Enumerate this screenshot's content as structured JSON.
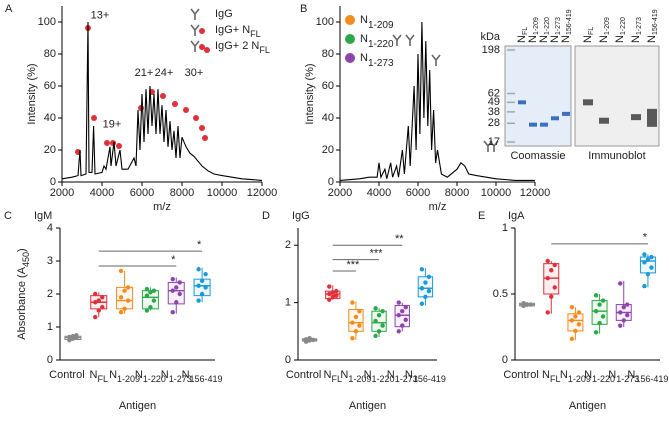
{
  "chart_data": [
    {
      "type": "line",
      "panel_label": "A",
      "xlabel": "m/z",
      "ylabel": "Intensity (%)",
      "color": "#000000",
      "x": [
        2000,
        2500,
        2800,
        2900,
        2950,
        3200,
        3300,
        3350,
        3500,
        3580,
        3650,
        4000,
        4100,
        4200,
        4400,
        4450,
        4600,
        4700,
        4900,
        5000,
        5300,
        5600,
        5700,
        5800,
        5900,
        6000,
        6100,
        6200,
        6300,
        6400,
        6500,
        6600,
        6700,
        6800,
        6900,
        7000,
        7100,
        7200,
        7300,
        7400,
        7500,
        7600,
        7700,
        7800,
        7900,
        8000,
        8200,
        8400,
        8600,
        8800,
        9000,
        9300,
        9600,
        10000,
        10500,
        11000,
        12000
      ],
      "values": [
        2,
        3,
        4,
        20,
        4,
        5,
        100,
        6,
        6,
        35,
        5,
        6,
        10,
        8,
        22,
        10,
        25,
        10,
        20,
        8,
        8,
        15,
        10,
        45,
        20,
        55,
        25,
        58,
        30,
        60,
        35,
        55,
        30,
        58,
        30,
        48,
        25,
        45,
        22,
        38,
        20,
        32,
        15,
        35,
        15,
        28,
        22,
        18,
        16,
        13,
        10,
        7,
        5,
        4,
        3,
        2,
        1
      ],
      "xlim": [
        2000,
        12000
      ],
      "xticks": [
        2000,
        4000,
        6000,
        8000,
        10000,
        12000
      ],
      "ylim": [
        0,
        110
      ],
      "yticks": [
        0,
        20,
        40,
        60,
        80,
        100
      ],
      "annotations": [
        {
          "text": "13+",
          "x": 3900,
          "y": 104
        },
        {
          "text": "19+",
          "x": 4500,
          "y": 36
        },
        {
          "text": "21+",
          "x": 6100,
          "y": 68
        },
        {
          "text": "24+",
          "x": 7100,
          "y": 68
        },
        {
          "text": "30+",
          "x": 8600,
          "y": 68
        }
      ],
      "legend": [
        {
          "text": "IgG"
        },
        {
          "text": "IgG+ N",
          "sub": "FL"
        },
        {
          "text": "IgG+ 2 N",
          "sub": "FL"
        }
      ],
      "marker_color": "#e0303a"
    },
    {
      "type": "line",
      "panel_label": "B",
      "xlabel": "m/z",
      "ylabel": "Intensity (%)",
      "color": "#000000",
      "x": [
        2000,
        3000,
        3500,
        3900,
        4000,
        4100,
        4300,
        4400,
        4600,
        4700,
        4900,
        5000,
        5200,
        5300,
        5500,
        5600,
        5800,
        5900,
        6000,
        6100,
        6200,
        6300,
        6400,
        6500,
        6600,
        6700,
        6800,
        6900,
        7000,
        7200,
        7500,
        8000,
        8200,
        8400,
        8600,
        9000,
        10000,
        11000,
        12000
      ],
      "values": [
        1,
        2,
        3,
        3,
        12,
        3,
        8,
        2,
        12,
        3,
        10,
        3,
        20,
        5,
        35,
        10,
        60,
        20,
        80,
        30,
        100,
        40,
        88,
        35,
        70,
        20,
        45,
        12,
        20,
        5,
        3,
        8,
        12,
        10,
        5,
        4,
        2,
        1,
        1
      ],
      "xlim": [
        2000,
        12000
      ],
      "xticks": [
        2000,
        4000,
        6000,
        8000,
        10000,
        12000
      ],
      "ylim": [
        0,
        110
      ],
      "yticks": [
        0,
        20,
        40,
        60,
        80,
        100
      ],
      "legend": [
        {
          "text": "N",
          "sub": "1-209",
          "color": "#f28c1e"
        },
        {
          "text": "N",
          "sub": "1-220",
          "color": "#2ca84a"
        },
        {
          "text": "N",
          "sub": "1-273",
          "color": "#8e44ad"
        }
      ],
      "inset": {
        "unit": "kDa",
        "markers": [
          198,
          62,
          49,
          38,
          28,
          17
        ],
        "lanes": [
          {
            "text": "N",
            "sub": "FL"
          },
          {
            "text": "N",
            "sub": "1-209"
          },
          {
            "text": "N",
            "sub": "1-220"
          },
          {
            "text": "N",
            "sub": "1-273"
          },
          {
            "text": "N",
            "sub": "156-419"
          }
        ],
        "blots": [
          "Coomassie",
          "Immunoblot"
        ]
      }
    },
    {
      "type": "box",
      "panel_label": "C",
      "title": "IgM",
      "xlabel": "Antigen",
      "ylabel": "Absorbance (A",
      "ylabel_sub": "450",
      "ylabel_end": ")",
      "categories": [
        "Control",
        "N",
        "N",
        "N",
        "N",
        "N"
      ],
      "category_subscripts": [
        null,
        "FL",
        "1-209",
        "1-220",
        "1-273",
        "156-419"
      ],
      "colors": [
        "#888888",
        "#e0303a",
        "#f28c1e",
        "#2ca84a",
        "#8e44ad",
        "#1b9ad6"
      ],
      "ylim": [
        0,
        4
      ],
      "yticks": [
        0,
        1,
        2,
        3,
        4
      ],
      "boxes": [
        {
          "low": 0.58,
          "q1": 0.62,
          "median": 0.68,
          "q3": 0.72,
          "high": 0.78,
          "points": [
            0.6,
            0.65,
            0.68,
            0.7,
            0.72,
            0.75
          ]
        },
        {
          "low": 1.3,
          "q1": 1.55,
          "median": 1.75,
          "q3": 1.95,
          "high": 2.05,
          "points": [
            1.3,
            1.5,
            1.6,
            1.75,
            1.8,
            1.9,
            2.0
          ]
        },
        {
          "low": 1.4,
          "q1": 1.55,
          "median": 1.8,
          "q3": 2.2,
          "high": 2.7,
          "points": [
            1.45,
            1.55,
            1.8,
            1.9,
            2.1,
            2.2,
            2.7
          ]
        },
        {
          "low": 1.5,
          "q1": 1.55,
          "median": 1.9,
          "q3": 2.1,
          "high": 2.2,
          "points": [
            1.5,
            1.6,
            1.8,
            1.95,
            2.05,
            2.1,
            2.15
          ]
        },
        {
          "low": 1.4,
          "q1": 1.7,
          "median": 2.1,
          "q3": 2.35,
          "high": 2.5,
          "points": [
            1.45,
            1.75,
            2.0,
            2.1,
            2.2,
            2.35,
            2.45
          ]
        },
        {
          "low": 1.75,
          "q1": 1.95,
          "median": 2.25,
          "q3": 2.45,
          "high": 2.8,
          "points": [
            1.8,
            2.0,
            2.2,
            2.25,
            2.4,
            2.6,
            2.75
          ]
        }
      ],
      "significance": [
        {
          "from": 1,
          "to": 4,
          "y": 2.85,
          "label": "*"
        },
        {
          "from": 1,
          "to": 5,
          "y": 3.3,
          "label": "*"
        }
      ]
    },
    {
      "type": "box",
      "panel_label": "D",
      "title": "IgG",
      "xlabel": "Antigen",
      "categories": [
        "Control",
        "N",
        "N",
        "N",
        "N",
        "N"
      ],
      "category_subscripts": [
        null,
        "FL",
        "1-209",
        "1-220",
        "1-273",
        "156-419"
      ],
      "colors": [
        "#888888",
        "#e0303a",
        "#f28c1e",
        "#2ca84a",
        "#8e44ad",
        "#1b9ad6"
      ],
      "ylim": [
        0,
        2.3
      ],
      "yticks": [
        0,
        1,
        2
      ],
      "boxes": [
        {
          "low": 0.31,
          "q1": 0.33,
          "median": 0.35,
          "q3": 0.37,
          "high": 0.4,
          "points": [
            0.32,
            0.34,
            0.35,
            0.36,
            0.38
          ]
        },
        {
          "low": 1.05,
          "q1": 1.07,
          "median": 1.15,
          "q3": 1.2,
          "high": 1.3,
          "points": [
            1.05,
            1.1,
            1.12,
            1.15,
            1.18,
            1.2,
            1.28
          ]
        },
        {
          "low": 0.35,
          "q1": 0.5,
          "median": 0.65,
          "q3": 0.88,
          "high": 1.02,
          "points": [
            0.38,
            0.5,
            0.6,
            0.65,
            0.75,
            0.85,
            1.0
          ]
        },
        {
          "low": 0.4,
          "q1": 0.5,
          "median": 0.65,
          "q3": 0.85,
          "high": 0.9,
          "points": [
            0.42,
            0.5,
            0.6,
            0.68,
            0.78,
            0.85,
            0.9
          ]
        },
        {
          "low": 0.5,
          "q1": 0.58,
          "median": 0.78,
          "q3": 0.95,
          "high": 1.0,
          "points": [
            0.5,
            0.6,
            0.7,
            0.78,
            0.85,
            0.92,
            1.0
          ]
        },
        {
          "low": 0.95,
          "q1": 1.1,
          "median": 1.25,
          "q3": 1.45,
          "high": 1.6,
          "points": [
            0.98,
            1.1,
            1.2,
            1.25,
            1.35,
            1.45,
            1.58
          ]
        }
      ],
      "significance": [
        {
          "from": 1,
          "to": 2,
          "y": 1.55,
          "label": "***"
        },
        {
          "from": 1,
          "to": 3,
          "y": 1.75,
          "label": "***"
        },
        {
          "from": 1,
          "to": 4,
          "y": 2.0,
          "label": "**"
        }
      ]
    },
    {
      "type": "box",
      "panel_label": "E",
      "title": "IgA",
      "xlabel": "Antigen",
      "categories": [
        "Control",
        "N",
        "N",
        "N",
        "N",
        "N"
      ],
      "category_subscripts": [
        null,
        "FL",
        "1-209",
        "1-220",
        "1-273",
        "156-419"
      ],
      "colors": [
        "#888888",
        "#e0303a",
        "#f28c1e",
        "#2ca84a",
        "#8e44ad",
        "#1b9ad6"
      ],
      "ylim": [
        0,
        1
      ],
      "yticks": [
        0,
        0.5,
        1
      ],
      "boxes": [
        {
          "low": 0.4,
          "q1": 0.41,
          "median": 0.42,
          "q3": 0.43,
          "high": 0.44,
          "points": [
            0.41,
            0.42,
            0.42,
            0.43
          ]
        },
        {
          "low": 0.35,
          "q1": 0.5,
          "median": 0.62,
          "q3": 0.73,
          "high": 0.75,
          "points": [
            0.36,
            0.48,
            0.55,
            0.62,
            0.68,
            0.72,
            0.75
          ]
        },
        {
          "low": 0.15,
          "q1": 0.22,
          "median": 0.3,
          "q3": 0.35,
          "high": 0.4,
          "points": [
            0.16,
            0.22,
            0.27,
            0.3,
            0.33,
            0.36,
            0.4
          ]
        },
        {
          "low": 0.2,
          "q1": 0.27,
          "median": 0.37,
          "q3": 0.45,
          "high": 0.5,
          "points": [
            0.21,
            0.28,
            0.33,
            0.37,
            0.42,
            0.45,
            0.49
          ]
        },
        {
          "low": 0.25,
          "q1": 0.3,
          "median": 0.36,
          "q3": 0.42,
          "high": 0.6,
          "points": [
            0.26,
            0.3,
            0.34,
            0.36,
            0.4,
            0.42,
            0.58
          ]
        },
        {
          "low": 0.55,
          "q1": 0.66,
          "median": 0.75,
          "q3": 0.78,
          "high": 0.8,
          "points": [
            0.56,
            0.65,
            0.7,
            0.74,
            0.76,
            0.78,
            0.8
          ]
        }
      ],
      "significance": [
        {
          "from": 1,
          "to": 5,
          "y": 0.88,
          "label": "*"
        }
      ]
    }
  ]
}
